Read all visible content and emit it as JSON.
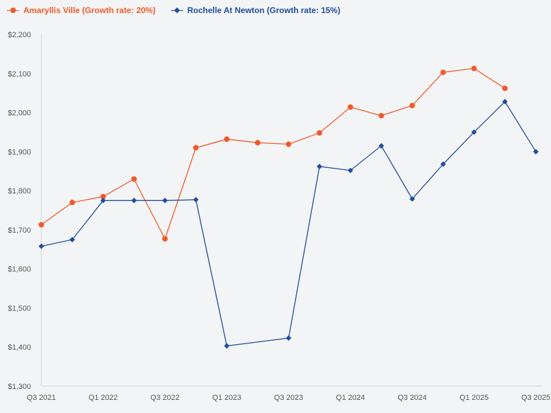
{
  "chart_data": {
    "type": "line",
    "categories": [
      "Q3 2021",
      "Q4 2021",
      "Q1 2022",
      "Q2 2022",
      "Q3 2022",
      "Q4 2022",
      "Q1 2023",
      "Q2 2023",
      "Q3 2023",
      "Q4 2023",
      "Q1 2024",
      "Q2 2024",
      "Q3 2024",
      "Q4 2024",
      "Q1 2025",
      "Q2 2025",
      "Q3 2025"
    ],
    "tick_labels": [
      "Q3 2021",
      "Q1 2022",
      "Q3 2022",
      "Q1 2023",
      "Q3 2023",
      "Q1 2024",
      "Q3 2024",
      "Q1 2025",
      "Q3 2025"
    ],
    "tick_indices": [
      0,
      2,
      4,
      6,
      8,
      10,
      12,
      14,
      16
    ],
    "ylim": [
      1300,
      2200
    ],
    "yticks": [
      1300,
      1400,
      1500,
      1600,
      1700,
      1800,
      1900,
      2000,
      2100,
      2200
    ],
    "ytick_labels": [
      "$1,300",
      "$1,400",
      "$1,500",
      "$1,600",
      "$1,700",
      "$1,800",
      "$1,900",
      "$2,000",
      "$2,100",
      "$2,200"
    ],
    "series": [
      {
        "name": "Amaryllis Ville (Growth rate: 20%)",
        "color": "#f05a28",
        "marker": "circle",
        "values": [
          1713,
          1770,
          1785,
          1830,
          1677,
          1910,
          1932,
          1923,
          1919,
          1948,
          2014,
          1992,
          2018,
          2103,
          2113,
          2062,
          null
        ]
      },
      {
        "name": "Rochelle At Newton (Growth rate: 15%)",
        "color": "#1f4e9c",
        "marker": "diamond",
        "values": [
          1658,
          1675,
          1775,
          1775,
          1775,
          1777,
          1403,
          null,
          1423,
          1862,
          1852,
          1915,
          1779,
          1868,
          1950,
          2028,
          1900
        ]
      }
    ]
  }
}
